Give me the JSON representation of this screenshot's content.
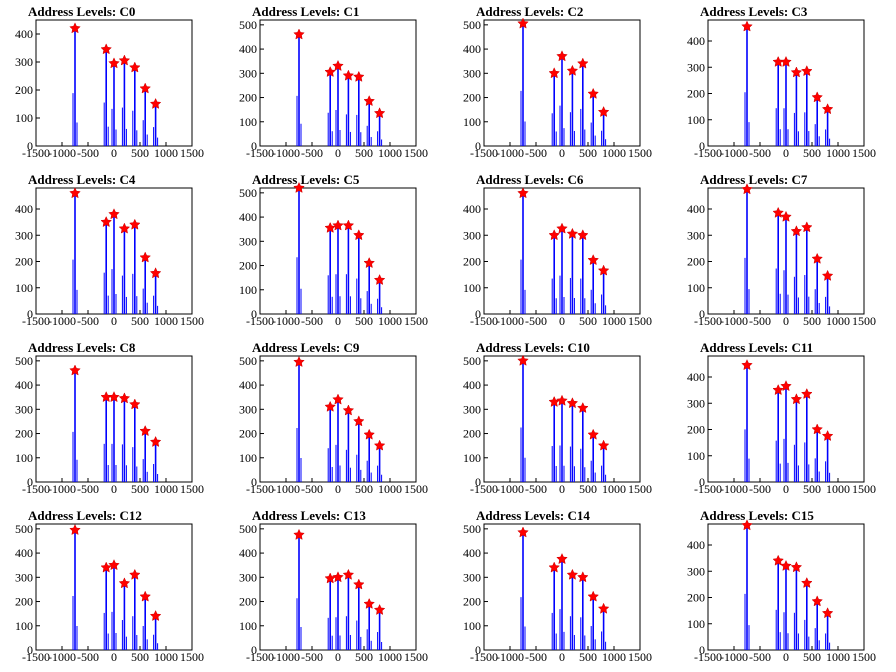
{
  "colors": {
    "bars": "#0000ff",
    "markers": "#ff0000",
    "axes": "#000000",
    "background": "#ffffff"
  },
  "chart_data": [
    {
      "title": "Address Levels: C0",
      "type": "bar",
      "xlim": [
        -1500,
        1500
      ],
      "ylim": [
        0,
        450
      ],
      "yticks": [
        0,
        100,
        200,
        300,
        400
      ],
      "xticks": [
        -1500,
        -1000,
        -500,
        0,
        500,
        1000,
        1500
      ],
      "peaks_x": [
        -750,
        -150,
        0,
        200,
        400,
        600,
        800
      ],
      "peaks_y": [
        420,
        345,
        295,
        305,
        280,
        205,
        150
      ]
    },
    {
      "title": "Address Levels: C1",
      "type": "bar",
      "xlim": [
        -1500,
        1500
      ],
      "ylim": [
        0,
        520
      ],
      "yticks": [
        0,
        100,
        200,
        300,
        400,
        500
      ],
      "xticks": [
        -1500,
        -1000,
        -500,
        0,
        500,
        1000,
        1500
      ],
      "peaks_x": [
        -750,
        -150,
        0,
        200,
        400,
        600,
        800
      ],
      "peaks_y": [
        460,
        305,
        330,
        290,
        285,
        185,
        135
      ]
    },
    {
      "title": "Address Levels: C2",
      "type": "bar",
      "xlim": [
        -1500,
        1500
      ],
      "ylim": [
        0,
        520
      ],
      "yticks": [
        0,
        100,
        200,
        300,
        400,
        500
      ],
      "xticks": [
        -1500,
        -1000,
        -500,
        0,
        500,
        1000,
        1500
      ],
      "peaks_x": [
        -750,
        -150,
        0,
        200,
        400,
        600,
        800
      ],
      "peaks_y": [
        505,
        300,
        370,
        310,
        340,
        215,
        140
      ]
    },
    {
      "title": "Address Levels: C3",
      "type": "bar",
      "xlim": [
        -1500,
        1500
      ],
      "ylim": [
        0,
        480
      ],
      "yticks": [
        0,
        100,
        200,
        300,
        400
      ],
      "xticks": [
        -1500,
        -1000,
        -500,
        0,
        500,
        1000,
        1500
      ],
      "peaks_x": [
        -750,
        -150,
        0,
        200,
        400,
        600,
        800
      ],
      "peaks_y": [
        455,
        320,
        320,
        280,
        285,
        185,
        140
      ]
    },
    {
      "title": "Address Levels: C4",
      "type": "bar",
      "xlim": [
        -1500,
        1500
      ],
      "ylim": [
        0,
        480
      ],
      "yticks": [
        0,
        100,
        200,
        300,
        400
      ],
      "xticks": [
        -1500,
        -1000,
        -500,
        0,
        500,
        1000,
        1500
      ],
      "peaks_x": [
        -750,
        -150,
        0,
        200,
        400,
        600,
        800
      ],
      "peaks_y": [
        460,
        350,
        380,
        325,
        340,
        215,
        155
      ]
    },
    {
      "title": "Address Levels: C5",
      "type": "bar",
      "xlim": [
        -1500,
        1500
      ],
      "ylim": [
        0,
        520
      ],
      "yticks": [
        0,
        100,
        200,
        300,
        400,
        500
      ],
      "xticks": [
        -1500,
        -1000,
        -500,
        0,
        500,
        1000,
        1500
      ],
      "peaks_x": [
        -750,
        -150,
        0,
        200,
        400,
        600,
        800
      ],
      "peaks_y": [
        520,
        355,
        365,
        365,
        325,
        210,
        140
      ]
    },
    {
      "title": "Address Levels: C6",
      "type": "bar",
      "xlim": [
        -1500,
        1500
      ],
      "ylim": [
        0,
        480
      ],
      "yticks": [
        0,
        100,
        200,
        300,
        400
      ],
      "xticks": [
        -1500,
        -1000,
        -500,
        0,
        500,
        1000,
        1500
      ],
      "peaks_x": [
        -750,
        -150,
        0,
        200,
        400,
        600,
        800
      ],
      "peaks_y": [
        460,
        300,
        325,
        305,
        300,
        205,
        165
      ]
    },
    {
      "title": "Address Levels: C7",
      "type": "bar",
      "xlim": [
        -1500,
        1500
      ],
      "ylim": [
        0,
        480
      ],
      "yticks": [
        0,
        100,
        200,
        300,
        400
      ],
      "xticks": [
        -1500,
        -1000,
        -500,
        0,
        500,
        1000,
        1500
      ],
      "peaks_x": [
        -750,
        -150,
        0,
        200,
        400,
        600,
        800
      ],
      "peaks_y": [
        475,
        385,
        370,
        315,
        330,
        210,
        145
      ]
    },
    {
      "title": "Address Levels: C8",
      "type": "bar",
      "xlim": [
        -1500,
        1500
      ],
      "ylim": [
        0,
        520
      ],
      "yticks": [
        0,
        100,
        200,
        300,
        400,
        500
      ],
      "xticks": [
        -1500,
        -1000,
        -500,
        0,
        500,
        1000,
        1500
      ],
      "peaks_x": [
        -750,
        -150,
        0,
        200,
        400,
        600,
        800
      ],
      "peaks_y": [
        460,
        350,
        350,
        345,
        320,
        210,
        165
      ]
    },
    {
      "title": "Address Levels: C9",
      "type": "bar",
      "xlim": [
        -1500,
        1500
      ],
      "ylim": [
        0,
        520
      ],
      "yticks": [
        0,
        100,
        200,
        300,
        400,
        500
      ],
      "xticks": [
        -1500,
        -1000,
        -500,
        0,
        500,
        1000,
        1500
      ],
      "peaks_x": [
        -750,
        -150,
        0,
        200,
        400,
        600,
        800
      ],
      "peaks_y": [
        495,
        310,
        340,
        295,
        250,
        195,
        150
      ]
    },
    {
      "title": "Address Levels: C10",
      "type": "bar",
      "xlim": [
        -1500,
        1500
      ],
      "ylim": [
        0,
        520
      ],
      "yticks": [
        0,
        100,
        200,
        300,
        400,
        500
      ],
      "xticks": [
        -1500,
        -1000,
        -500,
        0,
        500,
        1000,
        1500
      ],
      "peaks_x": [
        -750,
        -150,
        0,
        200,
        400,
        600,
        800
      ],
      "peaks_y": [
        500,
        330,
        335,
        325,
        305,
        195,
        150
      ]
    },
    {
      "title": "Address Levels: C11",
      "type": "bar",
      "xlim": [
        -1500,
        1500
      ],
      "ylim": [
        0,
        480
      ],
      "yticks": [
        0,
        100,
        200,
        300,
        400
      ],
      "xticks": [
        -1500,
        -1000,
        -500,
        0,
        500,
        1000,
        1500
      ],
      "peaks_x": [
        -750,
        -150,
        0,
        200,
        400,
        600,
        800
      ],
      "peaks_y": [
        445,
        350,
        365,
        315,
        335,
        200,
        175
      ]
    },
    {
      "title": "Address Levels: C12",
      "type": "bar",
      "xlim": [
        -1500,
        1500
      ],
      "ylim": [
        0,
        520
      ],
      "yticks": [
        0,
        100,
        200,
        300,
        400,
        500
      ],
      "xticks": [
        -1500,
        -1000,
        -500,
        0,
        500,
        1000,
        1500
      ],
      "peaks_x": [
        -750,
        -150,
        0,
        200,
        400,
        600,
        800
      ],
      "peaks_y": [
        495,
        340,
        350,
        275,
        310,
        220,
        140
      ]
    },
    {
      "title": "Address Levels: C13",
      "type": "bar",
      "xlim": [
        -1500,
        1500
      ],
      "ylim": [
        0,
        520
      ],
      "yticks": [
        0,
        100,
        200,
        300,
        400,
        500
      ],
      "xticks": [
        -1500,
        -1000,
        -500,
        0,
        500,
        1000,
        1500
      ],
      "peaks_x": [
        -750,
        -150,
        0,
        200,
        400,
        600,
        800
      ],
      "peaks_y": [
        475,
        295,
        300,
        310,
        270,
        190,
        165
      ]
    },
    {
      "title": "Address Levels: C14",
      "type": "bar",
      "xlim": [
        -1500,
        1500
      ],
      "ylim": [
        0,
        520
      ],
      "yticks": [
        0,
        100,
        200,
        300,
        400,
        500
      ],
      "xticks": [
        -1500,
        -1000,
        -500,
        0,
        500,
        1000,
        1500
      ],
      "peaks_x": [
        -750,
        -150,
        0,
        200,
        400,
        600,
        800
      ],
      "peaks_y": [
        485,
        340,
        375,
        310,
        300,
        220,
        170
      ]
    },
    {
      "title": "Address Levels: C15",
      "type": "bar",
      "xlim": [
        -1500,
        1500
      ],
      "ylim": [
        0,
        480
      ],
      "yticks": [
        0,
        100,
        200,
        300,
        400
      ],
      "xticks": [
        -1500,
        -1000,
        -500,
        0,
        500,
        1000,
        1500
      ],
      "peaks_x": [
        -750,
        -150,
        0,
        200,
        400,
        600,
        800
      ],
      "peaks_y": [
        475,
        340,
        320,
        315,
        255,
        185,
        140
      ]
    }
  ]
}
